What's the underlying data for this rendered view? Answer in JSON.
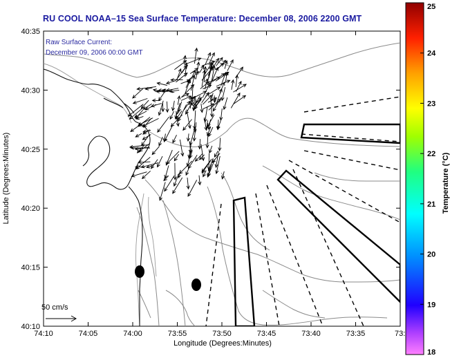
{
  "title": "RU COOL  NOAA–15  Sea Surface Temperature:  December 08, 2006 2200 GMT",
  "current": {
    "title": "Raw Surface Current:",
    "timestamp": "December 09, 2006 00:00 GMT"
  },
  "scale_arrow_label": "50 cm/s",
  "x_axis": {
    "label": "Longitude (Degrees:Minutes)",
    "ticks": [
      "74:10",
      "74:05",
      "74:00",
      "73:55",
      "73:50",
      "73:45",
      "73:40",
      "73:35",
      "73:3"
    ]
  },
  "y_axis": {
    "label": "Latitude (Degrees:Minutes)",
    "ticks": [
      "40:35",
      "40:30",
      "40:25",
      "40:20",
      "40:15",
      "40:10"
    ]
  },
  "colorbar": {
    "label": "Temperature (°C)",
    "ticks": [
      "25",
      "24",
      "23",
      "22",
      "21",
      "20",
      "19",
      "18"
    ],
    "min": 18,
    "max": 25,
    "colors": [
      "#ff66ff",
      "#7000ff",
      "#0000ff",
      "#0088ff",
      "#00ffff",
      "#00ff80",
      "#80ff00",
      "#ffff00",
      "#ffaa00",
      "#ff2000",
      "#a00000"
    ]
  }
}
